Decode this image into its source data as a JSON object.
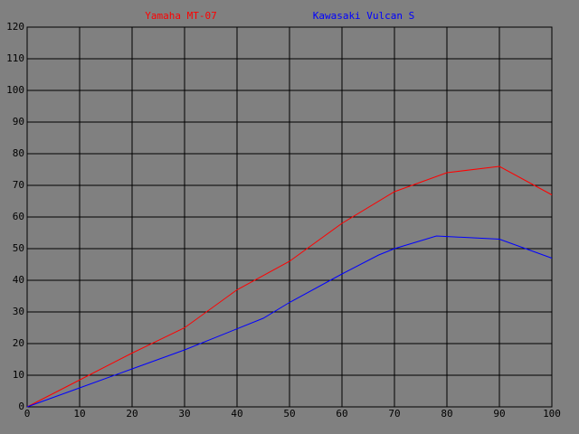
{
  "chart_data": {
    "type": "line",
    "series": [
      {
        "name": "Yamaha MT-07",
        "color": "#ff0000",
        "x": [
          0,
          10,
          20,
          30,
          40,
          50,
          60,
          70,
          80,
          90,
          100
        ],
        "values": [
          0,
          8.5,
          17,
          25,
          37,
          46,
          58,
          68,
          74,
          76,
          67
        ]
      },
      {
        "name": "Kawasaki Vulcan S",
        "color": "#0000ff",
        "x": [
          0,
          10,
          20,
          30,
          45,
          50,
          60,
          67,
          70,
          78,
          90,
          100
        ],
        "values": [
          0,
          6,
          12,
          18,
          28,
          33,
          42,
          48,
          50,
          54,
          53,
          47
        ]
      }
    ],
    "xlim": [
      0,
      100
    ],
    "xticks": [
      0,
      10,
      20,
      30,
      40,
      50,
      60,
      70,
      80,
      90,
      100
    ],
    "ylim": [
      0,
      120
    ],
    "yticks": [
      0,
      10,
      20,
      30,
      40,
      50,
      60,
      70,
      80,
      90,
      100,
      110,
      120
    ],
    "grid": true
  }
}
